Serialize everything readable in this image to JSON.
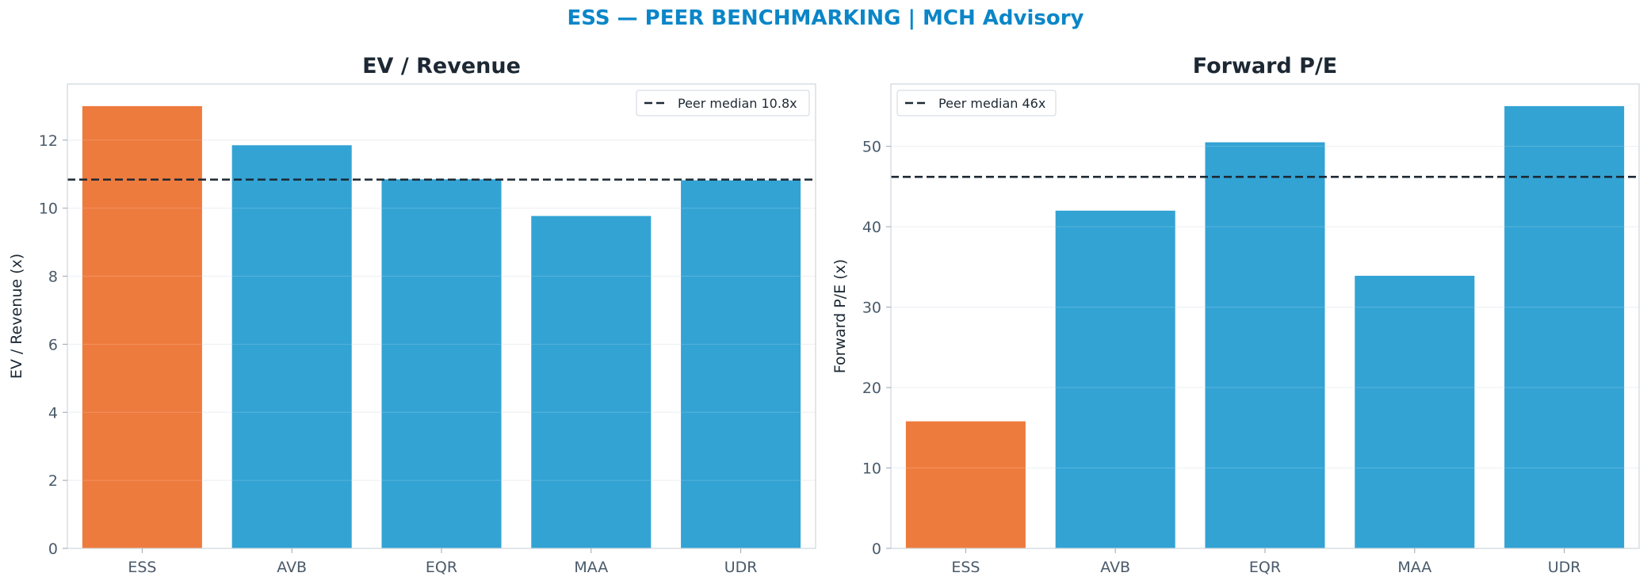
{
  "suptitle": "ESS — PEER BENCHMARKING | MCH Advisory",
  "colors": {
    "highlight": "#ee7b3e",
    "peer": "#33a3d4",
    "median_line": "#1c2833",
    "title": "#0a86c8"
  },
  "chart_data": [
    {
      "type": "bar",
      "title": "EV / Revenue",
      "ylabel": "EV / Revenue (x)",
      "categories": [
        "ESS",
        "AVB",
        "EQR",
        "MAA",
        "UDR"
      ],
      "values": [
        13.0,
        11.85,
        10.85,
        9.77,
        10.82
      ],
      "highlight_index": 0,
      "ylim": [
        0,
        13.65
      ],
      "yticks": [
        0,
        2,
        4,
        6,
        8,
        10,
        12
      ],
      "reference_line": {
        "value": 10.84,
        "label": "Peer median 10.8x"
      },
      "legend_position": "upper right",
      "grid": true
    },
    {
      "type": "bar",
      "title": "Forward P/E",
      "ylabel": "Forward P/E (x)",
      "categories": [
        "ESS",
        "AVB",
        "EQR",
        "MAA",
        "UDR"
      ],
      "values": [
        15.8,
        42.0,
        50.5,
        33.9,
        55.0
      ],
      "highlight_index": 0,
      "ylim": [
        0,
        57.75
      ],
      "yticks": [
        0,
        10,
        20,
        30,
        40,
        50
      ],
      "reference_line": {
        "value": 46.2,
        "label": "Peer median 46x"
      },
      "legend_position": "upper left",
      "grid": true
    }
  ]
}
